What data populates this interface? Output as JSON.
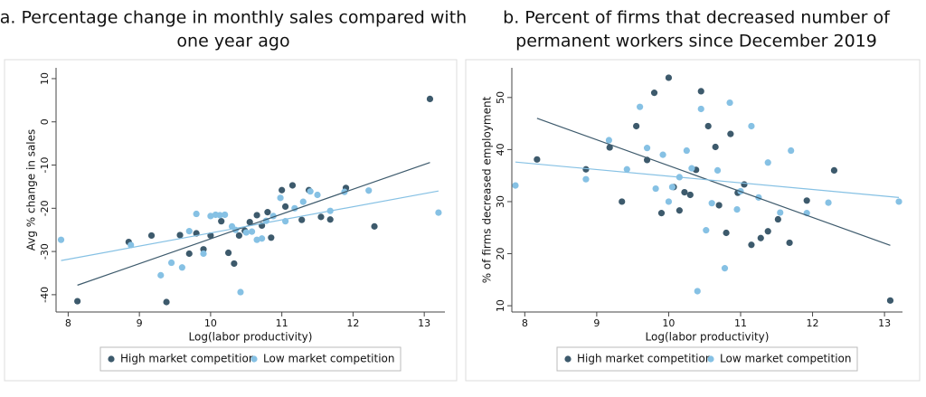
{
  "chart_data": [
    {
      "type": "scatter",
      "title": [
        "a. Percentage change in monthly sales compared with",
        "one year ago"
      ],
      "xlabel": "Log(labor productivity)",
      "ylabel": "Avg % change in sales",
      "xlim": [
        7.83,
        13.29
      ],
      "ylim": [
        -44,
        12.5
      ],
      "xticks": [
        8,
        9,
        10,
        11,
        12,
        13
      ],
      "yticks": [
        -40,
        -30,
        -20,
        -10,
        0,
        10
      ],
      "series": [
        {
          "name": "High market competition",
          "color": "#3d5a6c",
          "x": [
            8.13,
            8.85,
            9.17,
            9.38,
            9.57,
            9.7,
            9.8,
            9.9,
            10.0,
            10.15,
            10.25,
            10.33,
            10.4,
            10.48,
            10.55,
            10.65,
            10.72,
            10.8,
            10.85,
            11.0,
            11.05,
            11.15,
            11.28,
            11.38,
            11.55,
            11.68,
            11.9,
            12.3,
            13.08
          ],
          "values": [
            -41.5,
            -27.8,
            -26.3,
            -41.7,
            -26.2,
            -30.5,
            -25.8,
            -29.5,
            -26.3,
            -23,
            -30.3,
            -32.8,
            -26.3,
            -25.2,
            -23.2,
            -21.6,
            -24,
            -20.9,
            -26.8,
            -15.8,
            -19.6,
            -14.7,
            -22.7,
            -15.8,
            -22,
            -22.6,
            -15.3,
            -24.2,
            5.3
          ]
        },
        {
          "name": "Low market competition",
          "color": "#86c1e4",
          "x": [
            7.9,
            8.88,
            9.3,
            9.45,
            9.6,
            9.7,
            9.8,
            9.9,
            10.0,
            10.07,
            10.13,
            10.2,
            10.3,
            10.35,
            10.42,
            10.5,
            10.58,
            10.65,
            10.72,
            10.78,
            10.88,
            10.98,
            11.05,
            11.18,
            11.3,
            11.4,
            11.5,
            11.68,
            11.88,
            12.22,
            13.2
          ],
          "values": [
            -27.3,
            -28.5,
            -35.5,
            -32.6,
            -33.7,
            -25.3,
            -21.3,
            -30.5,
            -21.8,
            -21.5,
            -21.6,
            -21.5,
            -24.2,
            -25,
            -39.4,
            -25.6,
            -25.4,
            -27.3,
            -27,
            -22.9,
            -21.8,
            -17.6,
            -23,
            -20,
            -18.5,
            -16.1,
            -16.9,
            -20.6,
            -16.2,
            -15.9,
            -21
          ]
        }
      ],
      "trend_lines": [
        {
          "color": "#3d5a6c",
          "x": [
            8.13,
            13.08
          ],
          "values": [
            -37.8,
            -9.4
          ]
        },
        {
          "color": "#86c1e4",
          "x": [
            7.9,
            13.2
          ],
          "values": [
            -32.1,
            -16
          ]
        }
      ]
    },
    {
      "type": "scatter",
      "title": [
        "b. Percent of firms that decreased number of",
        "permanent workers since December 2019"
      ],
      "xlabel": "Log(labor productivity)",
      "ylabel": "% of firms decreased employment",
      "xlim": [
        7.82,
        13.25
      ],
      "ylim": [
        8.8,
        55.7
      ],
      "xticks": [
        8,
        9,
        10,
        11,
        12,
        13
      ],
      "yticks": [
        10,
        20,
        30,
        40,
        50
      ],
      "series": [
        {
          "name": "High market competition",
          "color": "#3d5a6c",
          "x": [
            8.17,
            8.85,
            9.18,
            9.35,
            9.55,
            9.7,
            9.8,
            9.9,
            10.0,
            10.07,
            10.15,
            10.22,
            10.3,
            10.38,
            10.45,
            10.55,
            10.65,
            10.7,
            10.8,
            10.86,
            10.96,
            11.05,
            11.15,
            11.28,
            11.38,
            11.52,
            11.68,
            11.92,
            12.3,
            13.08
          ],
          "values": [
            38.1,
            36.2,
            40.4,
            30,
            44.5,
            38,
            50.9,
            27.8,
            53.8,
            32.8,
            28.3,
            31.8,
            31.3,
            36.1,
            51.2,
            44.5,
            40.5,
            29.3,
            24,
            43,
            31.7,
            33.3,
            21.7,
            23,
            24.3,
            26.6,
            22.1,
            30.2,
            36,
            11
          ]
        },
        {
          "name": "Low market competition",
          "color": "#86c1e4",
          "x": [
            7.87,
            8.85,
            9.17,
            9.42,
            9.6,
            9.7,
            9.82,
            9.92,
            10.0,
            10.05,
            10.15,
            10.25,
            10.32,
            10.4,
            10.45,
            10.52,
            10.6,
            10.68,
            10.78,
            10.85,
            10.95,
            11.0,
            11.15,
            11.25,
            11.38,
            11.55,
            11.7,
            11.92,
            12.22,
            13.2
          ],
          "values": [
            33.1,
            34.3,
            41.8,
            36.2,
            48.2,
            40.3,
            32.5,
            39,
            30,
            32.8,
            34.7,
            39.8,
            36.4,
            12.8,
            47.8,
            24.5,
            29.7,
            36,
            17.2,
            49,
            28.5,
            32,
            44.5,
            30.8,
            37.5,
            27.9,
            39.8,
            27.8,
            29.8,
            30
          ]
        }
      ],
      "trend_lines": [
        {
          "color": "#3d5a6c",
          "x": [
            8.17,
            13.08
          ],
          "values": [
            46,
            21.6
          ]
        },
        {
          "color": "#86c1e4",
          "x": [
            7.87,
            13.2
          ],
          "values": [
            37.6,
            30.8
          ]
        }
      ]
    }
  ]
}
